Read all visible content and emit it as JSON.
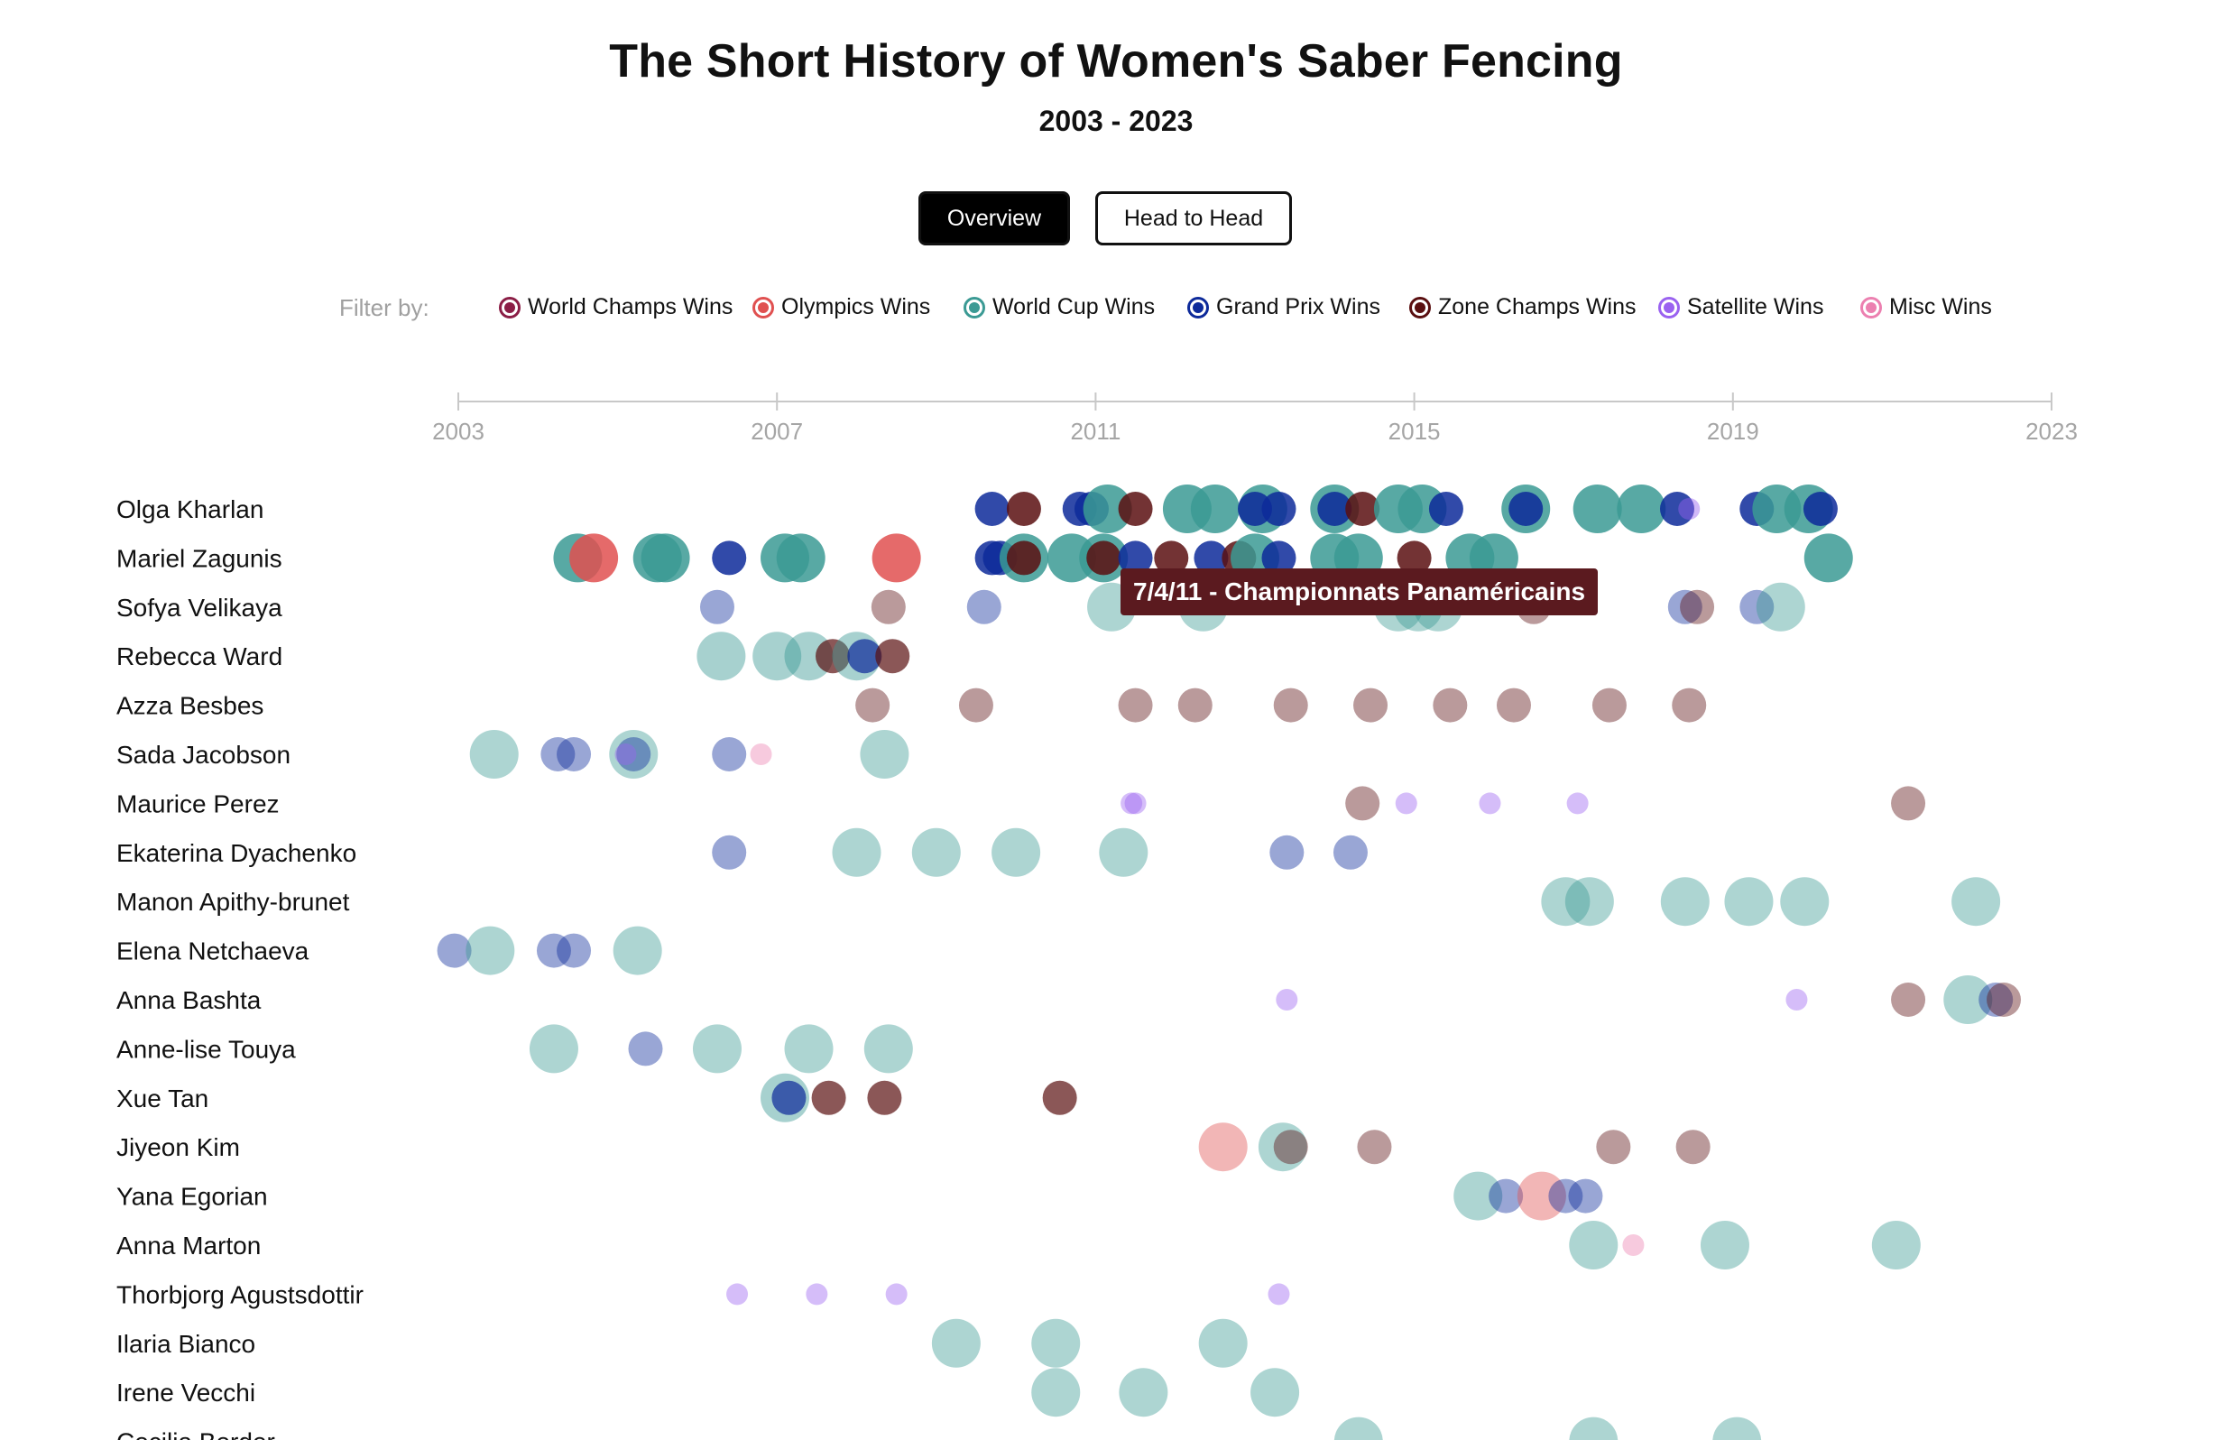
{
  "header": {
    "title": "The Short History of Women's Saber Fencing",
    "subtitle": "2003 - 2023"
  },
  "toggle": {
    "overview_label": "Overview",
    "head_to_head_label": "Head to Head",
    "active": "Overview"
  },
  "filter": {
    "label": "Filter by:",
    "items": [
      {
        "key": "wc",
        "label": "World Champs Wins",
        "color": "#8b1e46"
      },
      {
        "key": "ol",
        "label": "Olympics Wins",
        "color": "#e05050"
      },
      {
        "key": "cup",
        "label": "World Cup Wins",
        "color": "#3b9a94"
      },
      {
        "key": "gp",
        "label": "Grand Prix Wins",
        "color": "#0d2a9a"
      },
      {
        "key": "zone",
        "label": "Zone Champs Wins",
        "color": "#5a0f10"
      },
      {
        "key": "sat",
        "label": "Satellite Wins",
        "color": "#9a62f0"
      },
      {
        "key": "misc",
        "label": "Misc Wins",
        "color": "#ec80b0"
      }
    ]
  },
  "tooltip": {
    "text": "7/4/11 - Championnats Panaméricains"
  },
  "chart_data": {
    "type": "scatter",
    "title": "The Short History of Women's Saber Fencing",
    "subtitle": "2003 - 2023",
    "x_axis": {
      "range": [
        2003,
        2023
      ],
      "ticks": [
        "2003",
        "2007",
        "2011",
        "2015",
        "2019",
        "2023"
      ]
    },
    "categories": {
      "wc": {
        "color": "#8b1e46",
        "size": "large"
      },
      "ol": {
        "color": "#e05050",
        "size": "large"
      },
      "cup": {
        "color": "#3b9a94",
        "size": "large"
      },
      "gp": {
        "color": "#0d2a9a",
        "size": "medium"
      },
      "zone": {
        "color": "#5a0f10",
        "size": "medium"
      },
      "sat": {
        "color": "#9a62f0",
        "size": "small"
      },
      "misc": {
        "color": "#ec80b0",
        "size": "small"
      }
    },
    "fencers": [
      {
        "name": "Olga Kharlan",
        "emphasis": "high",
        "wins": [
          [
            "gp",
            2009.7
          ],
          [
            "zone",
            2010.1
          ],
          [
            "gp",
            2010.8
          ],
          [
            "gp",
            2010.95
          ],
          [
            "cup",
            2011.15
          ],
          [
            "zone",
            2011.5
          ],
          [
            "cup",
            2012.15
          ],
          [
            "cup",
            2012.5
          ],
          [
            "cup",
            2013.1
          ],
          [
            "gp",
            2013.0
          ],
          [
            "gp",
            2013.3
          ],
          [
            "cup",
            2014.0
          ],
          [
            "gp",
            2014.0
          ],
          [
            "zone",
            2014.35
          ],
          [
            "cup",
            2014.8
          ],
          [
            "cup",
            2015.1
          ],
          [
            "gp",
            2015.4
          ],
          [
            "cup",
            2016.4
          ],
          [
            "gp",
            2016.4
          ],
          [
            "cup",
            2017.3
          ],
          [
            "cup",
            2017.85
          ],
          [
            "gp",
            2018.3
          ],
          [
            "sat",
            2018.45
          ],
          [
            "gp",
            2019.3
          ],
          [
            "cup",
            2019.55
          ],
          [
            "cup",
            2019.95
          ],
          [
            "gp",
            2020.1
          ]
        ]
      },
      {
        "name": "Mariel Zagunis",
        "emphasis": "high",
        "wins": [
          [
            "cup",
            2004.5
          ],
          [
            "ol",
            2004.7
          ],
          [
            "cup",
            2005.5
          ],
          [
            "cup",
            2005.6
          ],
          [
            "gp",
            2006.4
          ],
          [
            "cup",
            2007.1
          ],
          [
            "cup",
            2007.3
          ],
          [
            "ol",
            2008.5
          ],
          [
            "gp",
            2009.7
          ],
          [
            "gp",
            2009.8
          ],
          [
            "cup",
            2010.1
          ],
          [
            "zone",
            2010.1
          ],
          [
            "cup",
            2010.7
          ],
          [
            "cup",
            2011.1
          ],
          [
            "zone",
            2011.1
          ],
          [
            "gp",
            2011.5
          ],
          [
            "zone",
            2011.95
          ],
          [
            "gp",
            2012.45
          ],
          [
            "zone",
            2012.8
          ],
          [
            "cup",
            2013.0
          ],
          [
            "gp",
            2013.3
          ],
          [
            "cup",
            2014.0
          ],
          [
            "cup",
            2014.3
          ],
          [
            "zone",
            2015.0
          ],
          [
            "cup",
            2015.7
          ],
          [
            "cup",
            2016.0
          ],
          [
            "cup",
            2020.2
          ]
        ]
      },
      {
        "name": "Sofya Velikaya",
        "emphasis": "low",
        "wins": [
          [
            "gp",
            2006.25
          ],
          [
            "zone",
            2008.4
          ],
          [
            "gp",
            2009.6
          ],
          [
            "cup",
            2011.2
          ],
          [
            "cup",
            2012.35
          ],
          [
            "cup",
            2014.8
          ],
          [
            "cup",
            2015.05
          ],
          [
            "cup",
            2015.3
          ],
          [
            "zone",
            2016.5
          ],
          [
            "gp",
            2018.4
          ],
          [
            "zone",
            2018.55
          ],
          [
            "gp",
            2019.3
          ],
          [
            "cup",
            2019.6
          ]
        ]
      },
      {
        "name": "Rebecca Ward",
        "emphasis": "mixed",
        "wins": [
          [
            "cup",
            2006.3
          ],
          [
            "cup",
            2007.0
          ],
          [
            "cup",
            2007.4
          ],
          [
            "zone",
            2007.7
          ],
          [
            "cup",
            2008.0
          ],
          [
            "gp",
            2008.1
          ],
          [
            "zone",
            2008.45
          ]
        ]
      },
      {
        "name": "Azza Besbes",
        "emphasis": "low",
        "wins": [
          [
            "zone",
            2008.2
          ],
          [
            "zone",
            2009.5
          ],
          [
            "zone",
            2011.5
          ],
          [
            "zone",
            2012.25
          ],
          [
            "zone",
            2013.45
          ],
          [
            "zone",
            2014.45
          ],
          [
            "zone",
            2015.45
          ],
          [
            "zone",
            2016.25
          ],
          [
            "zone",
            2017.45
          ],
          [
            "zone",
            2018.45
          ]
        ]
      },
      {
        "name": "Sada Jacobson",
        "emphasis": "low",
        "wins": [
          [
            "cup",
            2003.45
          ],
          [
            "gp",
            2004.25
          ],
          [
            "gp",
            2004.45
          ],
          [
            "cup",
            2005.2
          ],
          [
            "gp",
            2005.2
          ],
          [
            "sat",
            2005.1
          ],
          [
            "gp",
            2006.4
          ],
          [
            "misc",
            2006.8
          ],
          [
            "cup",
            2008.35
          ]
        ]
      },
      {
        "name": "Maurice Perez",
        "emphasis": "low",
        "wins": [
          [
            "sat",
            2011.45
          ],
          [
            "sat",
            2011.5
          ],
          [
            "zone",
            2014.35
          ],
          [
            "sat",
            2014.9
          ],
          [
            "sat",
            2015.95
          ],
          [
            "sat",
            2017.05
          ],
          [
            "zone",
            2021.2
          ]
        ]
      },
      {
        "name": "Ekaterina Dyachenko",
        "emphasis": "low",
        "wins": [
          [
            "gp",
            2006.4
          ],
          [
            "cup",
            2008.0
          ],
          [
            "cup",
            2009.0
          ],
          [
            "cup",
            2010.0
          ],
          [
            "cup",
            2011.35
          ],
          [
            "gp",
            2013.4
          ],
          [
            "gp",
            2014.2
          ]
        ]
      },
      {
        "name": "Manon Apithy-brunet",
        "emphasis": "low",
        "wins": [
          [
            "cup",
            2016.9
          ],
          [
            "cup",
            2017.2
          ],
          [
            "cup",
            2018.4
          ],
          [
            "cup",
            2019.2
          ],
          [
            "cup",
            2019.9
          ],
          [
            "cup",
            2022.05
          ]
        ]
      },
      {
        "name": "Elena Netchaeva",
        "emphasis": "low",
        "wins": [
          [
            "gp",
            2002.95
          ],
          [
            "cup",
            2003.4
          ],
          [
            "gp",
            2004.2
          ],
          [
            "gp",
            2004.45
          ],
          [
            "cup",
            2005.25
          ]
        ]
      },
      {
        "name": "Anna Bashta",
        "emphasis": "low",
        "wins": [
          [
            "sat",
            2013.4
          ],
          [
            "sat",
            2019.8
          ],
          [
            "zone",
            2021.2
          ],
          [
            "cup",
            2021.95
          ],
          [
            "gp",
            2022.3
          ],
          [
            "zone",
            2022.4
          ]
        ]
      },
      {
        "name": "Anne-lise Touya",
        "emphasis": "low",
        "wins": [
          [
            "cup",
            2004.2
          ],
          [
            "gp",
            2005.35
          ],
          [
            "cup",
            2006.25
          ],
          [
            "cup",
            2007.4
          ],
          [
            "cup",
            2008.4
          ]
        ]
      },
      {
        "name": "Xue Tan",
        "emphasis": "mixed",
        "wins": [
          [
            "cup",
            2007.1
          ],
          [
            "gp",
            2007.15
          ],
          [
            "zone",
            2007.65
          ],
          [
            "zone",
            2008.35
          ],
          [
            "zone",
            2010.55
          ]
        ]
      },
      {
        "name": "Jiyeon Kim",
        "emphasis": "low",
        "wins": [
          [
            "ol",
            2012.6
          ],
          [
            "cup",
            2013.35
          ],
          [
            "zone",
            2013.45
          ],
          [
            "zone",
            2014.5
          ],
          [
            "zone",
            2017.5
          ],
          [
            "zone",
            2018.5
          ]
        ]
      },
      {
        "name": "Yana Egorian",
        "emphasis": "low",
        "wins": [
          [
            "cup",
            2015.8
          ],
          [
            "gp",
            2016.15
          ],
          [
            "ol",
            2016.6
          ],
          [
            "gp",
            2016.9
          ],
          [
            "gp",
            2017.15
          ]
        ]
      },
      {
        "name": "Anna Marton",
        "emphasis": "low",
        "wins": [
          [
            "cup",
            2017.25
          ],
          [
            "misc",
            2017.75
          ],
          [
            "cup",
            2018.9
          ],
          [
            "cup",
            2021.05
          ]
        ]
      },
      {
        "name": "Thorbjorg Agustsdottir",
        "emphasis": "low",
        "wins": [
          [
            "sat",
            2006.5
          ],
          [
            "sat",
            2007.5
          ],
          [
            "sat",
            2008.5
          ],
          [
            "sat",
            2013.3
          ]
        ]
      },
      {
        "name": "Ilaria Bianco",
        "emphasis": "low",
        "wins": [
          [
            "cup",
            2009.25
          ],
          [
            "cup",
            2010.5
          ],
          [
            "cup",
            2012.6
          ]
        ]
      },
      {
        "name": "Irene Vecchi",
        "emphasis": "low",
        "wins": [
          [
            "cup",
            2010.5
          ],
          [
            "cup",
            2011.6
          ],
          [
            "cup",
            2013.25
          ]
        ]
      },
      {
        "name": "Cecilia Berder",
        "emphasis": "low",
        "wins": [
          [
            "cup",
            2014.3
          ],
          [
            "cup",
            2017.25
          ],
          [
            "cup",
            2019.05
          ]
        ]
      }
    ]
  }
}
